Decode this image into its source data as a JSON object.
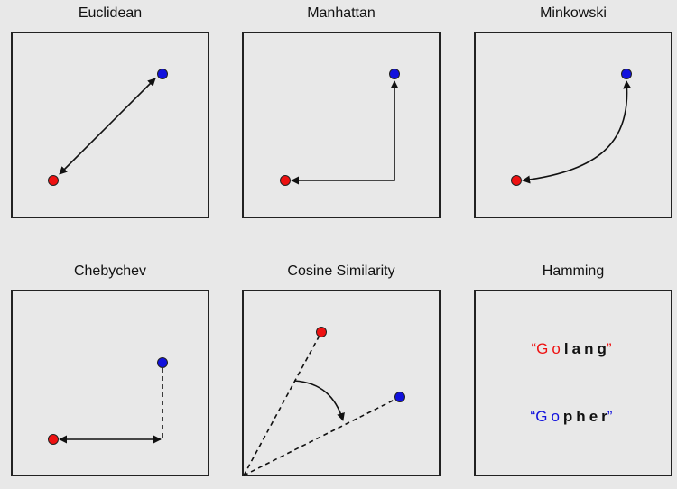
{
  "colors": {
    "point_a": "#ee1111",
    "point_b": "#1111dd",
    "line": "#111111",
    "background": "#e8e8e8"
  },
  "panels": [
    {
      "id": "euclidean",
      "title": "Euclidean"
    },
    {
      "id": "manhattan",
      "title": "Manhattan"
    },
    {
      "id": "minkowski",
      "title": "Minkowski"
    },
    {
      "id": "chebychev",
      "title": "Chebychev"
    },
    {
      "id": "cosine",
      "title": "Cosine Similarity"
    },
    {
      "id": "hamming",
      "title": "Hamming"
    }
  ],
  "hamming": {
    "open_quote": "“",
    "close_quote": "”",
    "word_a": {
      "letters": [
        "G",
        "o",
        "l",
        "a",
        "n",
        "g"
      ],
      "differs": [
        false,
        false,
        true,
        true,
        true,
        true
      ]
    },
    "word_b": {
      "letters": [
        "G",
        "o",
        "p",
        "h",
        "e",
        "r"
      ],
      "differs": [
        false,
        false,
        true,
        true,
        true,
        true
      ]
    }
  }
}
